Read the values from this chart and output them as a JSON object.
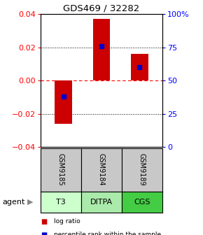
{
  "title": "GDS469 / 32282",
  "samples": [
    "GSM9185",
    "GSM9184",
    "GSM9189"
  ],
  "agents": [
    "T3",
    "DITPA",
    "CGS"
  ],
  "log_ratios": [
    -0.026,
    0.037,
    0.016
  ],
  "percentile_ranks": [
    0.38,
    0.76,
    0.6
  ],
  "ylim": [
    -0.04,
    0.04
  ],
  "y_ticks_left": [
    -0.04,
    -0.02,
    0.0,
    0.02,
    0.04
  ],
  "y_ticks_right_vals": [
    0,
    25,
    50,
    75,
    100
  ],
  "y_ticks_right_labels": [
    "0",
    "25",
    "50",
    "75",
    "100%"
  ],
  "bar_color": "#cc0000",
  "percentile_color": "#0000cc",
  "agent_colors": [
    "#ccffcc",
    "#aaeaaa",
    "#44cc44"
  ],
  "sample_bg": "#c8c8c8",
  "bar_width": 0.45,
  "legend_red": "log ratio",
  "legend_blue": "percentile rank within the sample"
}
